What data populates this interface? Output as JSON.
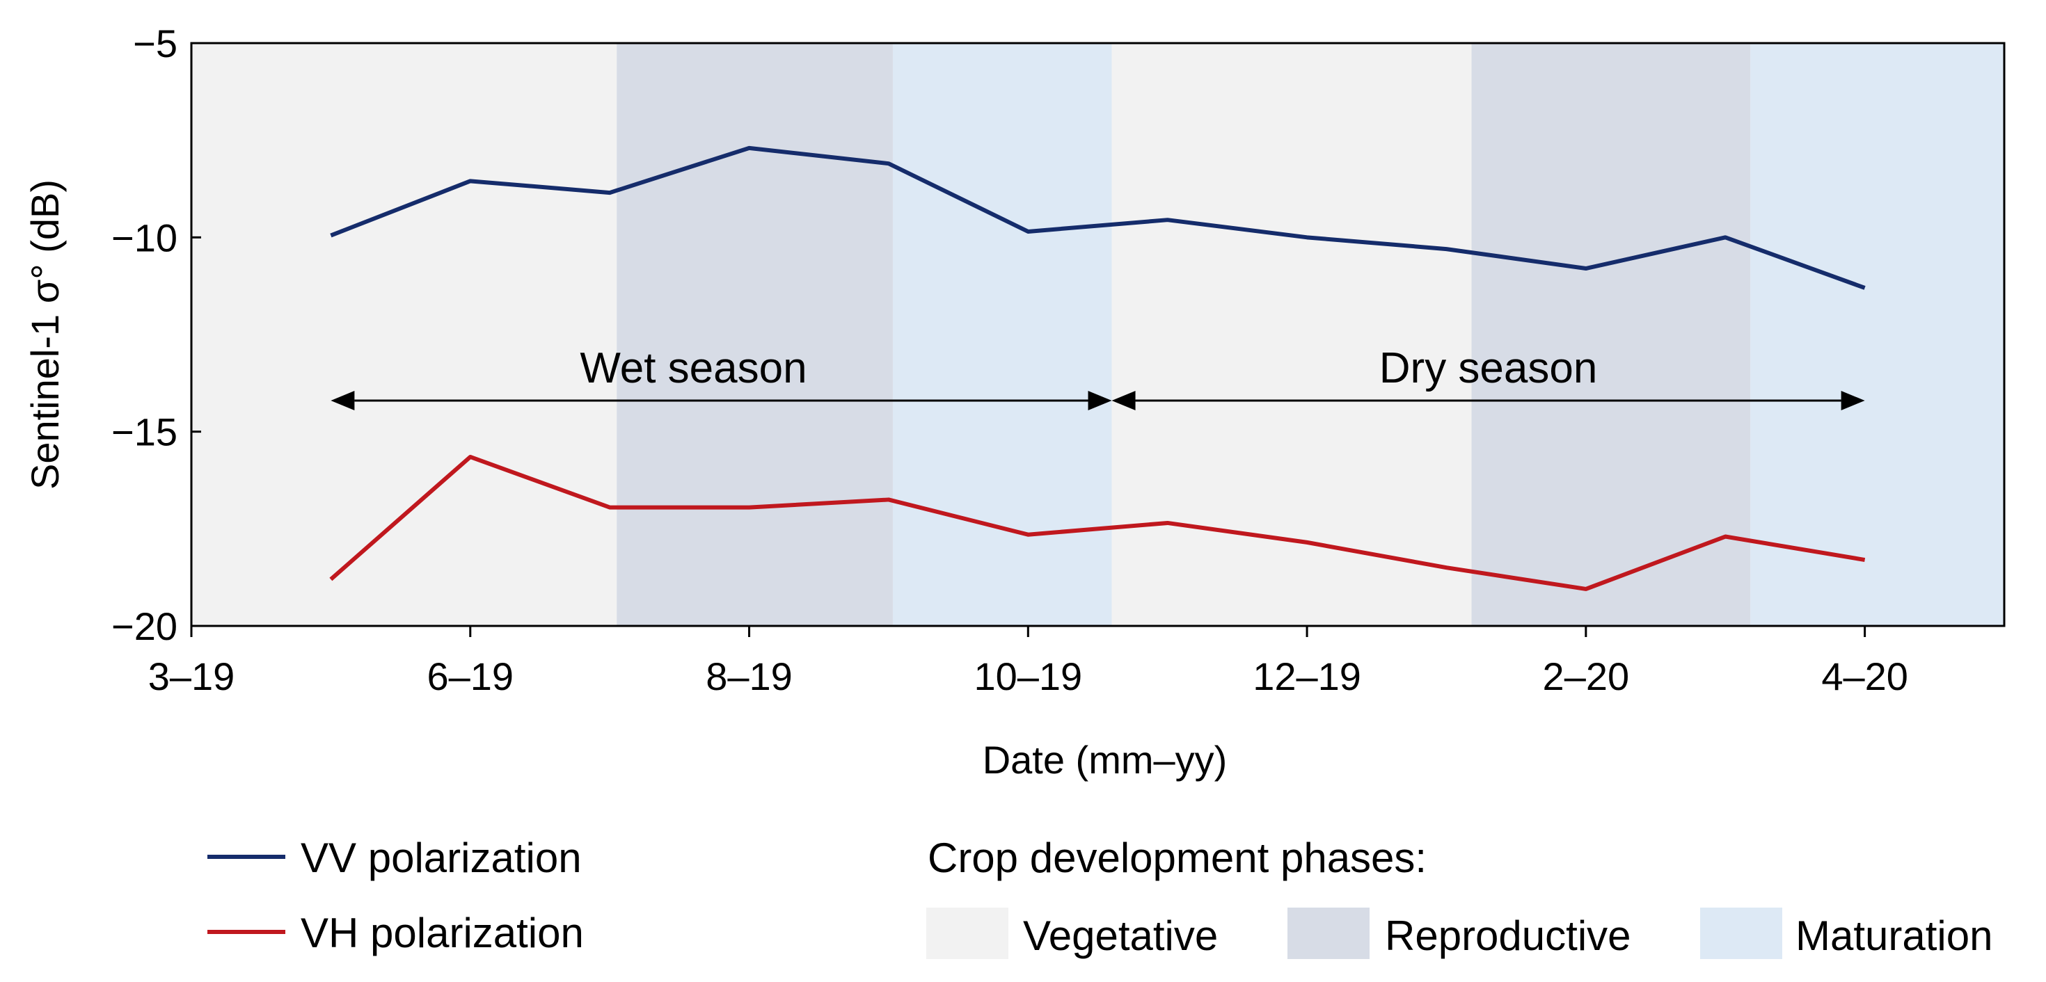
{
  "chart_data": {
    "type": "line",
    "title": "",
    "xlabel": "Date (mm–yy)",
    "ylabel": "Sentinel-1 σ° (dB)",
    "ylim": [
      -20,
      -5
    ],
    "xlim": [
      0,
      13
    ],
    "y_ticks": [
      -5,
      -10,
      -15,
      -20
    ],
    "y_tick_labels": [
      "−5",
      "−10",
      "−15",
      "−20"
    ],
    "x_ticks": [
      0,
      2,
      4,
      6,
      8,
      10,
      12
    ],
    "x_tick_labels": [
      "3–19",
      "6–19",
      "8–19",
      "10–19",
      "12–19",
      "2–20",
      "4–20"
    ],
    "series": [
      {
        "name": "VV polarization",
        "color": "#152c6b",
        "x": [
          1.0,
          2.0,
          3.0,
          4.0,
          5.0,
          6.0,
          7.0,
          8.0,
          9.0,
          10.0,
          11.0,
          12.0
        ],
        "values": [
          -9.95,
          -8.55,
          -8.85,
          -7.7,
          -8.1,
          -9.85,
          -9.55,
          -10.0,
          -10.3,
          -10.8,
          -10.0,
          -11.3
        ]
      },
      {
        "name": "VH polarization",
        "color": "#c0181e",
        "x": [
          1.0,
          2.0,
          3.0,
          4.0,
          5.0,
          6.0,
          7.0,
          8.0,
          9.0,
          10.0,
          11.0,
          12.0
        ],
        "values": [
          -18.8,
          -15.65,
          -16.95,
          -16.95,
          -16.75,
          -17.65,
          -17.35,
          -17.85,
          -18.5,
          -19.05,
          -17.7,
          -18.3
        ]
      }
    ],
    "phases": [
      {
        "phase": "Vegetative",
        "x0": 0,
        "x1": 3.05
      },
      {
        "phase": "Reproductive",
        "x0": 3.05,
        "x1": 5.03
      },
      {
        "phase": "Maturation",
        "x0": 5.03,
        "x1": 6.6
      },
      {
        "phase": "Vegetative",
        "x0": 6.6,
        "x1": 9.18
      },
      {
        "phase": "Reproductive",
        "x0": 9.18,
        "x1": 11.18
      },
      {
        "phase": "Maturation",
        "x0": 11.18,
        "x1": 13
      }
    ],
    "phase_colors": {
      "Vegetative": "#f2f2f2",
      "Reproductive": "#d7dce6",
      "Maturation": "#dde9f5"
    },
    "seasons": [
      {
        "label": "Wet season",
        "x0": 1.0,
        "x1": 6.6,
        "y": -14.2
      },
      {
        "label": "Dry season",
        "x0": 6.6,
        "x1": 12.0,
        "y": -14.2
      }
    ],
    "legend": {
      "series_entries": [
        "VV polarization",
        "VH polarization"
      ],
      "phases_title": "Crop development phases:",
      "phase_entries": [
        "Vegetative",
        "Reproductive",
        "Maturation"
      ]
    }
  }
}
